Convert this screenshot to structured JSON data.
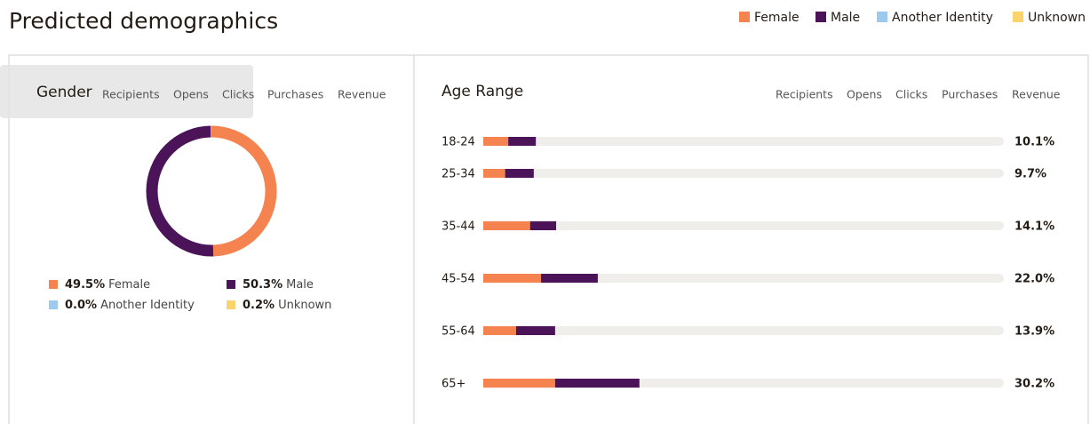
{
  "title": "Predicted demographics",
  "legend": [
    {
      "name": "Female",
      "color": "#f4834f"
    },
    {
      "name": "Male",
      "color": "#4b1458"
    },
    {
      "name": "Another Identity",
      "color": "#9ec9ee"
    },
    {
      "name": "Unknown",
      "color": "#f9d36b"
    }
  ],
  "gender": {
    "title": "Gender",
    "tabs": [
      "Recipients",
      "Opens",
      "Clicks",
      "Purchases",
      "Revenue"
    ],
    "chart_data": {
      "type": "donut",
      "categories": [
        "Female",
        "Male",
        "Another Identity",
        "Unknown"
      ],
      "values": [
        49.5,
        50.3,
        0.0,
        0.2
      ],
      "value_labels": [
        "49.5%",
        "50.3%",
        "0.0%",
        "0.2%"
      ],
      "colors": [
        "#f4834f",
        "#4b1458",
        "#9ec9ee",
        "#f9d36b"
      ]
    }
  },
  "age": {
    "title": "Age Range",
    "tabs": [
      "Recipients",
      "Opens",
      "Clicks",
      "Purchases",
      "Revenue"
    ],
    "chart_data": {
      "type": "stacked-bar",
      "categories": [
        "18-24",
        "25-34",
        "35-44",
        "45-54",
        "55-64",
        "65+"
      ],
      "series": [
        {
          "name": "Female",
          "color": "#f4834f",
          "values": [
            4.8,
            4.2,
            9.0,
            11.1,
            6.3,
            13.8
          ]
        },
        {
          "name": "Male",
          "color": "#4b1458",
          "values": [
            5.3,
            5.5,
            5.0,
            10.9,
            7.5,
            16.2
          ]
        }
      ],
      "value_labels": [
        "10.1%",
        "9.7%",
        "14.1%",
        "22.0%",
        "13.9%",
        "30.2%"
      ],
      "xlim": [
        0,
        100
      ]
    }
  }
}
